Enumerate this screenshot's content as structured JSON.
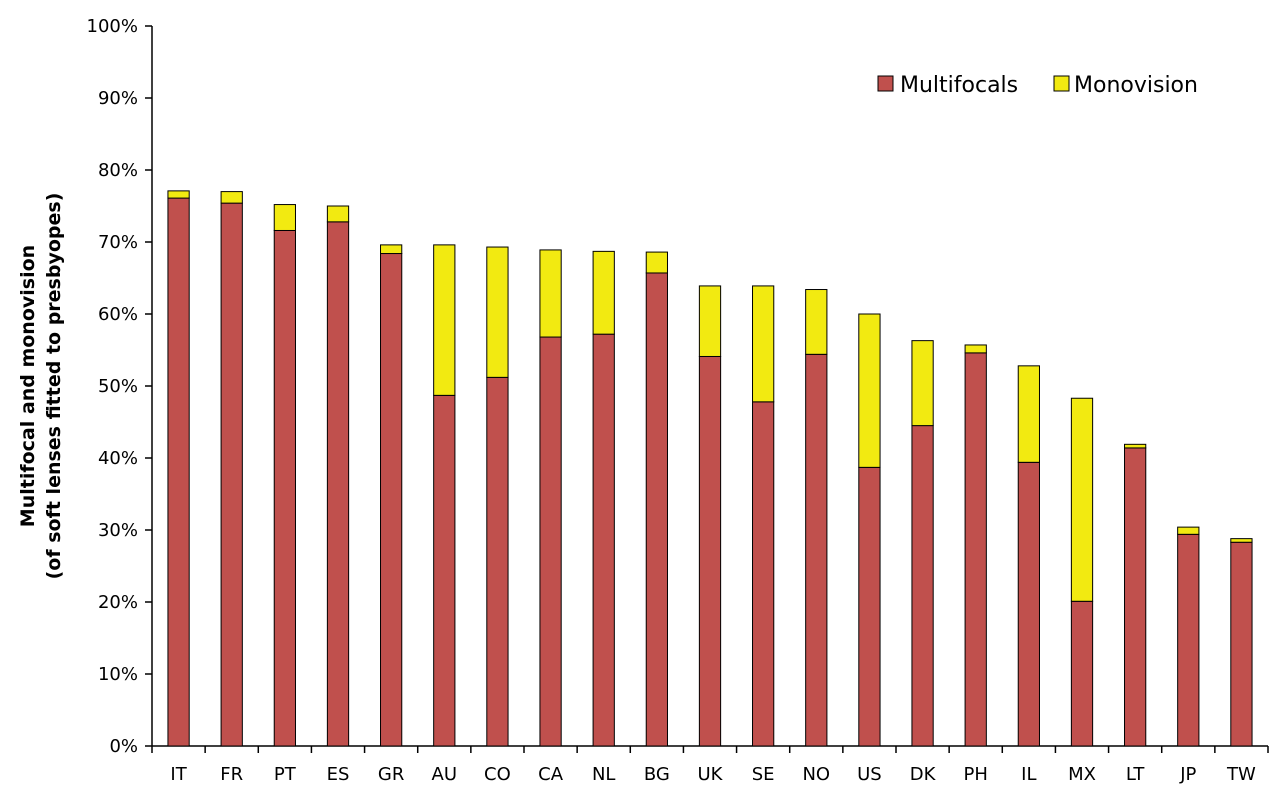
{
  "chart_data": {
    "type": "bar",
    "stacked": true,
    "title": "",
    "xlabel": "",
    "ylabel": "Multifocal and monovision",
    "ylabel_line2": "(of soft lenses fitted to presbyopes)",
    "ylim": [
      0,
      100
    ],
    "ytick_values": [
      0,
      10,
      20,
      30,
      40,
      50,
      60,
      70,
      80,
      90,
      100
    ],
    "ytick_labels": [
      "0%",
      "10%",
      "20%",
      "30%",
      "40%",
      "50%",
      "60%",
      "70%",
      "80%",
      "90%",
      "100%"
    ],
    "grid": false,
    "legend_position": "top-right",
    "categories": [
      "IT",
      "FR",
      "PT",
      "ES",
      "GR",
      "AU",
      "CO",
      "CA",
      "NL",
      "BG",
      "UK",
      "SE",
      "NO",
      "US",
      "DK",
      "PH",
      "IL",
      "MX",
      "LT",
      "JP",
      "TW"
    ],
    "series": [
      {
        "name": "Multifocals",
        "color": "#c0504d",
        "values": [
          76.1,
          75.4,
          71.6,
          72.8,
          68.4,
          48.7,
          51.2,
          56.8,
          57.2,
          65.7,
          54.1,
          47.8,
          54.4,
          38.7,
          44.5,
          54.6,
          39.4,
          20.1,
          41.4,
          29.4,
          28.3
        ]
      },
      {
        "name": "Monovision",
        "color": "#f2ea11",
        "values": [
          1.0,
          1.6,
          3.6,
          2.2,
          1.2,
          20.9,
          18.1,
          12.1,
          11.5,
          2.9,
          9.8,
          16.1,
          9.0,
          21.3,
          11.8,
          1.1,
          13.4,
          28.2,
          0.5,
          1.0,
          0.5
        ]
      }
    ]
  }
}
